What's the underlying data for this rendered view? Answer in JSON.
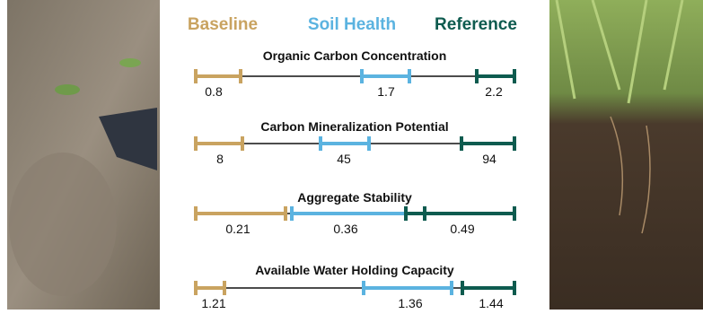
{
  "legend": {
    "baseline": "Baseline",
    "soil_health": "Soil Health",
    "reference": "Reference"
  },
  "indicators": [
    {
      "title": "Organic Carbon Concentration",
      "labels": [
        "0.8",
        "1.7",
        "2.2"
      ]
    },
    {
      "title": "Carbon Mineralization Potential",
      "labels": [
        "8",
        "45",
        "94"
      ]
    },
    {
      "title": "Aggregate Stability",
      "labels": [
        "0.21",
        "0.36",
        "0.49"
      ]
    },
    {
      "title": "Available Water Holding Capacity",
      "labels": [
        "1.21",
        "1.36",
        "1.44"
      ]
    }
  ]
}
